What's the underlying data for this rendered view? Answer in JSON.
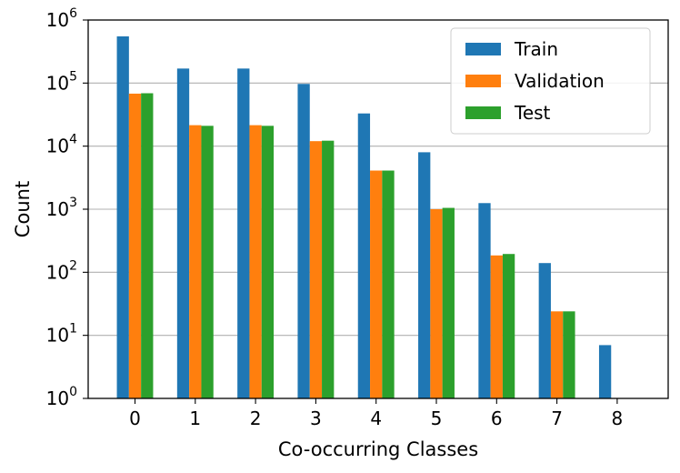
{
  "chart_data": {
    "type": "bar",
    "x_label": "Co-occurring Classes",
    "y_label": "Count",
    "y_scale": "log",
    "ylim": [
      1,
      1000000
    ],
    "grid": "horizontal",
    "legend_position": "top-right",
    "categories": [
      "0",
      "1",
      "2",
      "3",
      "4",
      "5",
      "6",
      "7",
      "8"
    ],
    "y_ticks": [
      {
        "base": "10",
        "exp": "0",
        "value": 1
      },
      {
        "base": "10",
        "exp": "1",
        "value": 10
      },
      {
        "base": "10",
        "exp": "2",
        "value": 100
      },
      {
        "base": "10",
        "exp": "3",
        "value": 1000
      },
      {
        "base": "10",
        "exp": "4",
        "value": 10000
      },
      {
        "base": "10",
        "exp": "5",
        "value": 100000
      },
      {
        "base": "10",
        "exp": "6",
        "value": 1000000
      }
    ],
    "series": [
      {
        "name": "Train",
        "color": "#1f77b4",
        "values": [
          550000,
          170000,
          170000,
          97000,
          33000,
          8000,
          1250,
          140,
          7
        ]
      },
      {
        "name": "Validation",
        "color": "#ff7f0e",
        "values": [
          68000,
          21500,
          21500,
          12000,
          4100,
          1000,
          185,
          24,
          null
        ]
      },
      {
        "name": "Test",
        "color": "#2ca02c",
        "values": [
          69000,
          21000,
          21000,
          12200,
          4100,
          1050,
          195,
          24,
          null
        ]
      }
    ]
  }
}
